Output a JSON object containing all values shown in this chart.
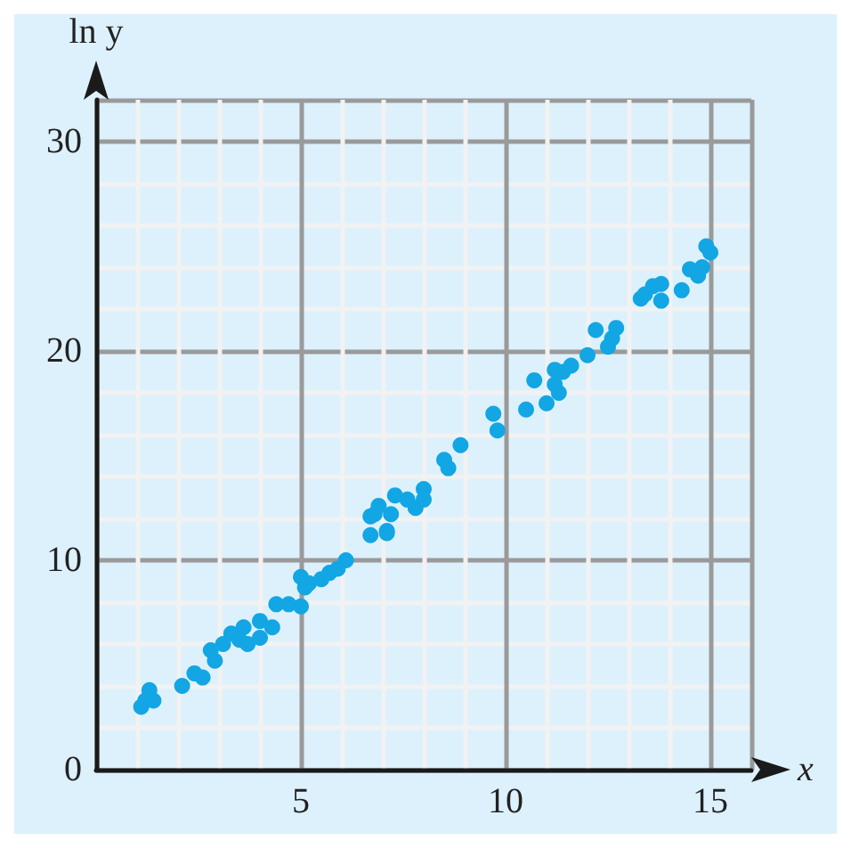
{
  "chart_data": {
    "type": "scatter",
    "xlabel": "x",
    "ylabel": "ln y",
    "xlim": [
      0,
      16
    ],
    "ylim": [
      0,
      32
    ],
    "xticks": [
      {
        "value": 0,
        "label": null
      },
      5,
      10,
      15
    ],
    "yticks": [
      0,
      10,
      20,
      30
    ],
    "grid": true,
    "marker": "circle",
    "x": [
      1.1,
      1.3,
      1.2,
      1.4,
      2.1,
      2.4,
      2.6,
      2.9,
      2.8,
      3.1,
      3.3,
      3.6,
      3.5,
      3.7,
      4.0,
      4.0,
      4.3,
      4.4,
      4.7,
      5.0,
      5.0,
      5.1,
      5.2,
      5.5,
      5.7,
      5.9,
      6.1,
      6.7,
      6.7,
      7.1,
      6.8,
      7.1,
      6.9,
      7.2,
      7.3,
      7.6,
      7.8,
      8.0,
      8.0,
      8.5,
      8.6,
      8.9,
      9.7,
      9.8,
      10.5,
      10.7,
      11.0,
      11.2,
      11.3,
      11.2,
      11.4,
      11.6,
      12.0,
      12.2,
      12.5,
      12.6,
      12.7,
      13.3,
      13.4,
      13.6,
      13.8,
      13.8,
      14.3,
      14.5,
      14.7,
      14.8,
      14.9,
      15.0
    ],
    "values": [
      3.0,
      3.8,
      3.3,
      3.3,
      4.0,
      4.6,
      4.4,
      5.2,
      5.7,
      6.0,
      6.5,
      6.8,
      6.2,
      6.0,
      7.1,
      6.3,
      6.8,
      7.9,
      7.9,
      7.8,
      9.2,
      8.7,
      8.9,
      9.1,
      9.4,
      9.6,
      10.0,
      11.2,
      12.1,
      11.3,
      12.2,
      11.4,
      12.6,
      12.2,
      13.1,
      12.9,
      12.5,
      13.4,
      12.9,
      14.8,
      14.4,
      15.5,
      17.0,
      16.2,
      17.2,
      18.6,
      17.5,
      19.1,
      18.0,
      18.4,
      19.0,
      19.3,
      19.8,
      21.0,
      20.2,
      20.6,
      21.1,
      22.5,
      22.7,
      23.1,
      23.2,
      22.4,
      22.9,
      23.9,
      23.6,
      24.0,
      25.0,
      24.7
    ],
    "color": "#12a6e4"
  }
}
